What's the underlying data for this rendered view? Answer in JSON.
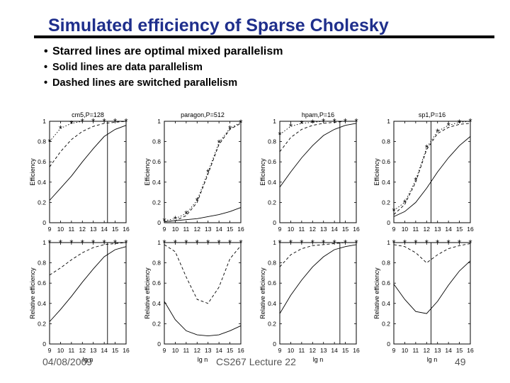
{
  "slide": {
    "title": "Simulated efficiency of Sparse Cholesky",
    "bullets": [
      "Starred lines are optimal mixed parallelism",
      "Solid lines are data parallelism",
      "Dashed lines are switched parallelism"
    ],
    "footer_left": "04/08/2009",
    "footer_center": "CS267 Lecture 22",
    "footer_right": "49"
  },
  "chart_data": [
    {
      "type": "line",
      "title": "cm5,P=128",
      "xlabel": "",
      "ylabel": "Efficiency",
      "xlim": [
        9,
        16
      ],
      "ylim": [
        0,
        1
      ],
      "xticks": [
        9,
        10,
        11,
        12,
        13,
        14,
        15,
        16
      ],
      "yticks": [
        0,
        0.2,
        0.4,
        0.6,
        0.8,
        1
      ],
      "vline": 14.3,
      "series": [
        {
          "style": "solid",
          "x": [
            9,
            10,
            11,
            12,
            13,
            14,
            15,
            16
          ],
          "y": [
            0.22,
            0.34,
            0.46,
            0.6,
            0.73,
            0.85,
            0.92,
            0.96
          ]
        },
        {
          "style": "dashed",
          "x": [
            9,
            10,
            11,
            12,
            13,
            14,
            15,
            16
          ],
          "y": [
            0.55,
            0.7,
            0.82,
            0.9,
            0.95,
            0.98,
            0.99,
            1.0
          ]
        },
        {
          "style": "starred",
          "x": [
            9,
            10,
            11,
            12,
            13,
            14,
            15,
            16
          ],
          "y": [
            0.8,
            0.93,
            0.98,
            1.0,
            1.0,
            1.0,
            1.0,
            1.0
          ]
        }
      ]
    },
    {
      "type": "line",
      "title": "paragon,P=512",
      "xlabel": "",
      "ylabel": "Efficiency",
      "xlim": [
        9,
        16
      ],
      "ylim": [
        0,
        1
      ],
      "xticks": [
        9,
        10,
        11,
        12,
        13,
        14,
        15,
        16
      ],
      "yticks": [
        0,
        0.2,
        0.4,
        0.6,
        0.8,
        1
      ],
      "series": [
        {
          "style": "solid",
          "x": [
            9,
            10,
            11,
            12,
            13,
            14,
            15,
            16
          ],
          "y": [
            0.01,
            0.02,
            0.03,
            0.04,
            0.06,
            0.08,
            0.11,
            0.15
          ]
        },
        {
          "style": "dashed",
          "x": [
            9,
            10,
            11,
            12,
            13,
            14,
            15,
            16
          ],
          "y": [
            0.01,
            0.02,
            0.07,
            0.2,
            0.48,
            0.77,
            0.92,
            0.98
          ]
        },
        {
          "style": "starred",
          "x": [
            9,
            10,
            11,
            12,
            13,
            14,
            15,
            16
          ],
          "y": [
            0.02,
            0.04,
            0.09,
            0.22,
            0.5,
            0.79,
            0.93,
            0.99
          ]
        }
      ]
    },
    {
      "type": "line",
      "title": "hpam,P=16",
      "xlabel": "",
      "ylabel": "Efficiency",
      "xlim": [
        9,
        16
      ],
      "ylim": [
        0,
        1
      ],
      "xticks": [
        9,
        10,
        11,
        12,
        13,
        14,
        15,
        16
      ],
      "yticks": [
        0,
        0.2,
        0.4,
        0.6,
        0.8,
        1
      ],
      "vline": 14.5,
      "series": [
        {
          "style": "solid",
          "x": [
            9,
            10,
            11,
            12,
            13,
            14,
            15,
            16
          ],
          "y": [
            0.35,
            0.5,
            0.64,
            0.76,
            0.86,
            0.92,
            0.96,
            0.98
          ]
        },
        {
          "style": "dashed",
          "x": [
            9,
            10,
            11,
            12,
            13,
            14,
            15,
            16
          ],
          "y": [
            0.7,
            0.84,
            0.92,
            0.96,
            0.98,
            0.99,
            1.0,
            1.0
          ]
        },
        {
          "style": "starred",
          "x": [
            9,
            10,
            11,
            12,
            13,
            14,
            15,
            16
          ],
          "y": [
            0.87,
            0.95,
            0.98,
            0.99,
            1.0,
            1.0,
            1.0,
            1.0
          ]
        }
      ]
    },
    {
      "type": "line",
      "title": "sp1,P=16",
      "xlabel": "",
      "ylabel": "Efficiency",
      "xlim": [
        9,
        16
      ],
      "ylim": [
        0,
        1
      ],
      "xticks": [
        9,
        10,
        11,
        12,
        13,
        14,
        15,
        16
      ],
      "yticks": [
        0,
        0.2,
        0.4,
        0.6,
        0.8,
        1
      ],
      "vline": 12.4,
      "series": [
        {
          "style": "solid",
          "x": [
            9,
            10,
            11,
            12,
            13,
            14,
            15,
            16
          ],
          "y": [
            0.06,
            0.11,
            0.2,
            0.34,
            0.5,
            0.64,
            0.76,
            0.85
          ]
        },
        {
          "style": "dashed",
          "x": [
            9,
            10,
            11,
            12,
            13,
            14,
            15,
            16
          ],
          "y": [
            0.08,
            0.18,
            0.4,
            0.72,
            0.88,
            0.94,
            0.97,
            0.98
          ]
        },
        {
          "style": "starred",
          "x": [
            9,
            10,
            11,
            12,
            13,
            14,
            15,
            16
          ],
          "y": [
            0.12,
            0.2,
            0.42,
            0.74,
            0.9,
            0.96,
            0.99,
            1.0
          ]
        }
      ]
    },
    {
      "type": "line",
      "title": "",
      "xlabel": "lg n",
      "ylabel": "Relative efficiency",
      "xlim": [
        9,
        16
      ],
      "ylim": [
        0,
        1
      ],
      "xticks": [
        9,
        10,
        11,
        12,
        13,
        14,
        15,
        16
      ],
      "yticks": [
        0,
        0.2,
        0.4,
        0.6,
        0.8,
        1
      ],
      "vline": 14.3,
      "series": [
        {
          "style": "solid",
          "x": [
            9,
            10,
            11,
            12,
            13,
            14,
            15,
            16
          ],
          "y": [
            0.22,
            0.34,
            0.47,
            0.61,
            0.74,
            0.86,
            0.93,
            0.96
          ]
        },
        {
          "style": "dashed",
          "x": [
            9,
            10,
            11,
            12,
            13,
            14,
            15,
            16
          ],
          "y": [
            0.68,
            0.75,
            0.83,
            0.9,
            0.95,
            0.98,
            0.99,
            1.0
          ]
        },
        {
          "style": "starred",
          "x": [
            9,
            10,
            11,
            12,
            13,
            14,
            15,
            16
          ],
          "y": [
            1.0,
            1.0,
            1.0,
            1.0,
            1.0,
            1.0,
            1.0,
            1.0
          ]
        }
      ]
    },
    {
      "type": "line",
      "title": "",
      "xlabel": "lg n",
      "ylabel": "Relative efficiency",
      "xlim": [
        9,
        16
      ],
      "ylim": [
        0,
        1
      ],
      "xticks": [
        9,
        10,
        11,
        12,
        13,
        14,
        15,
        16
      ],
      "yticks": [
        0,
        0.2,
        0.4,
        0.6,
        0.8,
        1
      ],
      "series": [
        {
          "style": "solid",
          "x": [
            9,
            10,
            11,
            12,
            13,
            14,
            15,
            16
          ],
          "y": [
            0.42,
            0.24,
            0.13,
            0.09,
            0.08,
            0.09,
            0.13,
            0.18
          ]
        },
        {
          "style": "dashed",
          "x": [
            9,
            10,
            11,
            12,
            13,
            14,
            15,
            16
          ],
          "y": [
            0.98,
            0.91,
            0.66,
            0.44,
            0.4,
            0.56,
            0.84,
            0.97
          ]
        },
        {
          "style": "starred",
          "x": [
            9,
            10,
            11,
            12,
            13,
            14,
            15,
            16
          ],
          "y": [
            1.0,
            1.0,
            1.0,
            1.0,
            1.0,
            1.0,
            1.0,
            1.0
          ]
        }
      ]
    },
    {
      "type": "line",
      "title": "",
      "xlabel": "lg n",
      "ylabel": "Relative efficiency",
      "xlim": [
        9,
        16
      ],
      "ylim": [
        0,
        1
      ],
      "xticks": [
        9,
        10,
        11,
        12,
        13,
        14,
        15,
        16
      ],
      "yticks": [
        0,
        0.2,
        0.4,
        0.6,
        0.8,
        1
      ],
      "vline": 14.5,
      "series": [
        {
          "style": "solid",
          "x": [
            9,
            10,
            11,
            12,
            13,
            14,
            15,
            16
          ],
          "y": [
            0.3,
            0.48,
            0.63,
            0.76,
            0.86,
            0.93,
            0.96,
            0.98
          ]
        },
        {
          "style": "dashed",
          "x": [
            9,
            10,
            11,
            12,
            13,
            14,
            15,
            16
          ],
          "y": [
            0.76,
            0.88,
            0.94,
            0.97,
            0.98,
            0.99,
            1.0,
            1.0
          ]
        },
        {
          "style": "starred",
          "x": [
            9,
            10,
            11,
            12,
            13,
            14,
            15,
            16
          ],
          "y": [
            1.0,
            1.0,
            1.0,
            1.0,
            1.0,
            1.0,
            1.0,
            1.0
          ]
        }
      ]
    },
    {
      "type": "line",
      "title": "",
      "xlabel": "lg n",
      "ylabel": "Relative efficiency",
      "xlim": [
        9,
        16
      ],
      "ylim": [
        0,
        1
      ],
      "xticks": [
        9,
        10,
        11,
        12,
        13,
        14,
        15,
        16
      ],
      "yticks": [
        0,
        0.2,
        0.4,
        0.6,
        0.8,
        1
      ],
      "vline": 12.4,
      "series": [
        {
          "style": "solid",
          "x": [
            9,
            10,
            11,
            12,
            13,
            14,
            15,
            16
          ],
          "y": [
            0.59,
            0.44,
            0.32,
            0.3,
            0.42,
            0.58,
            0.72,
            0.82
          ]
        },
        {
          "style": "dashed",
          "x": [
            9,
            10,
            11,
            12,
            13,
            14,
            15,
            16
          ],
          "y": [
            0.98,
            0.96,
            0.9,
            0.8,
            0.88,
            0.94,
            0.97,
            0.99
          ]
        },
        {
          "style": "starred",
          "x": [
            9,
            10,
            11,
            12,
            13,
            14,
            15,
            16
          ],
          "y": [
            1.0,
            1.0,
            1.0,
            1.0,
            1.0,
            1.0,
            1.0,
            1.0
          ]
        }
      ]
    }
  ]
}
